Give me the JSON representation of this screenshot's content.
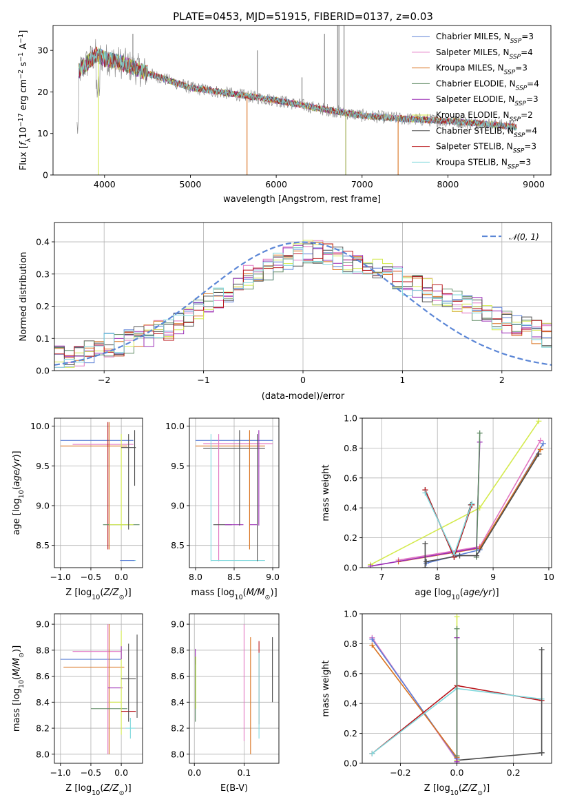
{
  "figure": {
    "title": "PLATE=0453, MJD=51915, FIBERID=0137, z=0.03"
  },
  "series": [
    {
      "name": "Chabrier MILES, N_SSP=3",
      "label_base": "Chabrier MILES, N",
      "label_sub": "SSP",
      "label_tail": "=3",
      "color": "#5b7fd6"
    },
    {
      "name": "Salpeter MILES, N_SSP=4",
      "label_base": "Salpeter MILES, N",
      "label_sub": "SSP",
      "label_tail": "=4",
      "color": "#e276c2"
    },
    {
      "name": "Kroupa MILES, N_SSP=3",
      "label_base": "Kroupa MILES, N",
      "label_sub": "SSP",
      "label_tail": "=3",
      "color": "#d9721f"
    },
    {
      "name": "Chabrier ELODIE, N_SSP=4",
      "label_base": "Chabrier ELODIE, N",
      "label_sub": "SSP",
      "label_tail": "=4",
      "color": "#5e8a63"
    },
    {
      "name": "Salpeter ELODIE, N_SSP=3",
      "label_base": "Salpeter ELODIE, N",
      "label_sub": "SSP",
      "label_tail": "=3",
      "color": "#9a2bb5"
    },
    {
      "name": "Kroupa ELODIE, N_SSP=2",
      "label_base": "Kroupa ELODIE, N",
      "label_sub": "SSP",
      "label_tail": "=2",
      "color": "#d4ea4e"
    },
    {
      "name": "Chabrier STELIB, N_SSP=4",
      "label_base": "Chabrier STELIB, N",
      "label_sub": "SSP",
      "label_tail": "=4",
      "color": "#4d4d4d"
    },
    {
      "name": "Salpeter STELIB, N_SSP=3",
      "label_base": "Salpeter STELIB, N",
      "label_sub": "SSP",
      "label_tail": "=3",
      "color": "#b8141a"
    },
    {
      "name": "Kroupa STELIB, N_SSP=3",
      "label_base": "Kroupa STELIB, N",
      "label_sub": "SSP",
      "label_tail": "=3",
      "color": "#7fd8dc"
    }
  ],
  "chart_data": [
    {
      "id": "spectrum",
      "type": "line",
      "xlabel": "wavelength [Angstrom, rest frame]",
      "ylabel": "Flux [f_λ 10^-17 erg cm^-2 s^-1 A^-1]",
      "ylabel_parts": {
        "a": "Flux [",
        "b": "f",
        "b_sub": "λ",
        "c": "10",
        "c_sup": "−17",
        "d": " erg cm",
        "d_sup": "−2",
        "e": " s",
        "e_sup": "−1",
        "f": " A",
        "f_sup": "−1",
        "g": "]"
      },
      "xlim": [
        3400,
        9200
      ],
      "ylim": [
        0,
        36
      ],
      "xticks": [
        4000,
        5000,
        6000,
        7000,
        8000,
        9000
      ],
      "yticks": [
        0,
        10,
        20,
        30
      ],
      "grid": false,
      "legend": "upper right",
      "continuum": {
        "x": [
          3700,
          3900,
          4000,
          4200,
          4500,
          5000,
          5500,
          6000,
          6500,
          7000,
          7500,
          8000,
          8500,
          8800
        ],
        "y": [
          25,
          29,
          28,
          27,
          24.5,
          21,
          19.5,
          18,
          16,
          14.3,
          13.5,
          13,
          12.2,
          11.5
        ]
      },
      "gray_data_spikes": [
        {
          "x": 4330,
          "y": 34
        },
        {
          "x": 5780,
          "y": 30
        },
        {
          "x": 6300,
          "y": 23.5
        },
        {
          "x": 6563,
          "y": 34
        },
        {
          "x": 6716,
          "y": 36
        },
        {
          "x": 6731,
          "y": 36
        },
        {
          "x": 6790,
          "y": 36
        }
      ],
      "model_dropouts": [
        {
          "x": 3930,
          "color": "#d4ea4e"
        },
        {
          "x": 5660,
          "color": "#d9721f"
        },
        {
          "x": 6810,
          "color": "#9aa84a"
        },
        {
          "x": 7420,
          "color": "#d9721f"
        }
      ]
    },
    {
      "id": "residual_histogram",
      "type": "line",
      "xlabel": "(data-model)/error",
      "ylabel": "Normed distribution",
      "xlim": [
        -2.5,
        2.5
      ],
      "ylim": [
        0,
        0.46
      ],
      "xticks": [
        -2,
        -1,
        0,
        1,
        2
      ],
      "yticks": [
        0.0,
        0.1,
        0.2,
        0.3,
        0.4
      ],
      "grid": true,
      "legend": "upper right",
      "reference_label": "𝒩(0, 1)",
      "reference_color": "#5b86d6",
      "bin_width": 0.1,
      "base_profile": [
        0.04,
        0.04,
        0.05,
        0.06,
        0.07,
        0.08,
        0.08,
        0.09,
        0.1,
        0.11,
        0.12,
        0.13,
        0.15,
        0.17,
        0.19,
        0.21,
        0.23,
        0.25,
        0.27,
        0.29,
        0.3,
        0.31,
        0.33,
        0.35,
        0.36,
        0.37,
        0.37,
        0.36,
        0.35,
        0.34,
        0.33,
        0.33,
        0.32,
        0.31,
        0.29,
        0.27,
        0.26,
        0.25,
        0.24,
        0.22,
        0.21,
        0.2,
        0.19,
        0.17,
        0.16,
        0.15,
        0.14,
        0.13,
        0.12,
        0.11,
        0.1,
        0.09,
        0.09,
        0.08,
        0.07,
        0.06,
        0.06,
        0.05,
        0.05,
        0.04,
        0.04,
        0.04,
        0.03,
        0.03,
        0.03,
        0.03,
        0.03,
        0.02,
        0.02,
        0.02
      ]
    },
    {
      "id": "age_vs_Z",
      "type": "scatter",
      "xlabel": "Z [log10(Z/Z⊙)]",
      "ylabel": "age  [log10(age/yr)]",
      "xlim": [
        -1.1,
        0.35
      ],
      "ylim": [
        8.22,
        10.1
      ],
      "xticks": [
        -1.0,
        -0.5,
        0.0
      ],
      "xtick_labels": [
        "−1.0",
        "−0.5",
        "0.0"
      ],
      "yticks": [
        8.5,
        9.0,
        9.5,
        10.0
      ],
      "grid": true,
      "errorbars": [
        {
          "s": 0,
          "x": -0.4,
          "y": 9.82,
          "xerr": 0.6,
          "yerr": 0
        },
        {
          "s": 1,
          "x": -0.3,
          "y": 9.77,
          "xerr": 0.5,
          "yerr": 0
        },
        {
          "s": 2,
          "x": -0.45,
          "y": 9.75,
          "xerr": 0.55,
          "yerr": 0
        },
        {
          "s": 7,
          "x": -0.22,
          "y": 9.25,
          "xerr": 0,
          "yerr": 0.8
        },
        {
          "s": 2,
          "x": -0.2,
          "y": 9.25,
          "xerr": 0,
          "yerr": 0.8
        },
        {
          "s": 3,
          "x": 0.0,
          "y": 8.76,
          "xerr": 0.3,
          "yerr": 0
        },
        {
          "s": 5,
          "x": 0.0,
          "y": 8.76,
          "xerr": 0.2,
          "yerr": 0
        },
        {
          "s": 5,
          "x": 0.0,
          "y": 9.3,
          "xerr": 0,
          "yerr": 0.6
        },
        {
          "s": 6,
          "x": 0.12,
          "y": 9.73,
          "xerr": 0.12,
          "yerr": 0
        },
        {
          "s": 6,
          "x": 0.12,
          "y": 9.3,
          "xerr": 0,
          "yerr": 0.6
        },
        {
          "s": 8,
          "x": 0.12,
          "y": 8.31,
          "xerr": 0.12,
          "yerr": 0
        },
        {
          "s": 6,
          "x": 0.22,
          "y": 9.6,
          "xerr": 0,
          "yerr": 0.35
        },
        {
          "s": 0,
          "x": 0.1,
          "y": 8.31,
          "xerr": 0.12,
          "yerr": 0
        }
      ]
    },
    {
      "id": "age_vs_mass",
      "type": "scatter",
      "xlabel": "mass [log10(M/M⊙)]",
      "ylabel": "",
      "xlim": [
        7.92,
        9.08
      ],
      "ylim": [
        8.22,
        10.1
      ],
      "xticks": [
        8.0,
        8.5,
        9.0
      ],
      "xtick_labels": [
        "8.0",
        "8.5",
        "9.0"
      ],
      "yticks": [
        8.5,
        9.0,
        9.5,
        10.0
      ],
      "grid": true,
      "errorbars": [
        {
          "s": 0,
          "x": 8.5,
          "y": 9.82,
          "xerr": 0.5,
          "yerr": 0
        },
        {
          "s": 1,
          "x": 8.55,
          "y": 9.78,
          "xerr": 0.45,
          "yerr": 0
        },
        {
          "s": 2,
          "x": 8.45,
          "y": 9.75,
          "xerr": 0.45,
          "yerr": 0
        },
        {
          "s": 6,
          "x": 8.5,
          "y": 9.72,
          "xerr": 0.4,
          "yerr": 0
        },
        {
          "s": 8,
          "x": 8.2,
          "y": 9.1,
          "xerr": 0,
          "yerr": 0.8
        },
        {
          "s": 1,
          "x": 8.3,
          "y": 9.1,
          "xerr": 0,
          "yerr": 0.8
        },
        {
          "s": 6,
          "x": 8.35,
          "y": 8.76,
          "xerr": 0.12,
          "yerr": 0
        },
        {
          "s": 4,
          "x": 8.5,
          "y": 8.76,
          "xerr": 0.12,
          "yerr": 0
        },
        {
          "s": 4,
          "x": 8.75,
          "y": 8.76,
          "xerr": 0.05,
          "yerr": 0
        },
        {
          "s": 6,
          "x": 8.57,
          "y": 9.35,
          "xerr": 0,
          "yerr": 0.6
        },
        {
          "s": 2,
          "x": 8.7,
          "y": 9.2,
          "xerr": 0,
          "yerr": 0.75
        },
        {
          "s": 8,
          "x": 8.55,
          "y": 8.31,
          "xerr": 0.35,
          "yerr": 0
        },
        {
          "s": 6,
          "x": 8.8,
          "y": 9.1,
          "xerr": 0,
          "yerr": 0.8
        },
        {
          "s": 4,
          "x": 8.82,
          "y": 9.35,
          "xerr": 0,
          "yerr": 0.6
        }
      ]
    },
    {
      "id": "weight_vs_age",
      "type": "line",
      "xlabel": "age  [log10(age/yr)]",
      "ylabel": "mass weight",
      "xlim": [
        6.65,
        10.05
      ],
      "ylim": [
        0,
        1.0
      ],
      "xticks": [
        7,
        8,
        9,
        10
      ],
      "xtick_labels": [
        "7",
        "8",
        "9",
        "10"
      ],
      "yticks": [
        0.0,
        0.2,
        0.4,
        0.6,
        0.8,
        1.0
      ],
      "grid": true,
      "lines": [
        {
          "s": 5,
          "x": [
            6.8,
            8.76,
            9.82
          ],
          "y": [
            0.02,
            0.4,
            0.98
          ]
        },
        {
          "s": 0,
          "x": [
            7.8,
            8.76,
            9.9
          ],
          "y": [
            0.03,
            0.12,
            0.83
          ]
        },
        {
          "s": 1,
          "x": [
            7.3,
            8.76,
            9.85
          ],
          "y": [
            0.05,
            0.14,
            0.85
          ]
        },
        {
          "s": 2,
          "x": [
            7.3,
            8.76,
            9.85
          ],
          "y": [
            0.04,
            0.13,
            0.79
          ]
        },
        {
          "s": 4,
          "x": [
            6.8,
            8.7,
            8.76
          ],
          "y": [
            0.01,
            0.13,
            0.84
          ]
        },
        {
          "s": 3,
          "x": [
            8.7,
            8.76
          ],
          "y": [
            0.07,
            0.9
          ]
        },
        {
          "s": 6,
          "x": [
            7.8,
            8.4,
            8.7,
            9.82
          ],
          "y": [
            0.04,
            0.08,
            0.08,
            0.76
          ]
        },
        {
          "s": 6,
          "x": [
            7.78,
            7.78
          ],
          "y": [
            0.0,
            0.16
          ]
        },
        {
          "s": 6,
          "x": [
            7.78,
            8.3,
            8.6
          ],
          "y": [
            0.52,
            0.07,
            0.42
          ]
        },
        {
          "s": 7,
          "x": [
            7.78,
            8.3,
            8.62
          ],
          "y": [
            0.52,
            0.07,
            0.42
          ]
        },
        {
          "s": 8,
          "x": [
            7.78,
            8.3,
            8.62
          ],
          "y": [
            0.5,
            0.09,
            0.43
          ]
        }
      ]
    },
    {
      "id": "mass_vs_Z",
      "type": "scatter",
      "xlabel": "Z [log10(Z/Z⊙)]",
      "ylabel": "mass [log10(M/M⊙)]",
      "xlim": [
        -1.1,
        0.35
      ],
      "ylim": [
        7.93,
        9.08
      ],
      "xticks": [
        -1.0,
        -0.5,
        0.0
      ],
      "xtick_labels": [
        "−1.0",
        "−0.5",
        "0.0"
      ],
      "yticks": [
        8.0,
        8.2,
        8.4,
        8.6,
        8.8,
        9.0
      ],
      "grid": true,
      "errorbars": [
        {
          "s": 0,
          "x": -0.5,
          "y": 8.73,
          "xerr": 0.5,
          "yerr": 0
        },
        {
          "s": 1,
          "x": -0.4,
          "y": 8.79,
          "xerr": 0.4,
          "yerr": 0
        },
        {
          "s": 2,
          "x": -0.45,
          "y": 8.67,
          "xerr": 0.5,
          "yerr": 0
        },
        {
          "s": 1,
          "x": -0.22,
          "y": 8.5,
          "xerr": 0,
          "yerr": 0.5
        },
        {
          "s": 2,
          "x": -0.2,
          "y": 8.5,
          "xerr": 0,
          "yerr": 0.5
        },
        {
          "s": 4,
          "x": -0.1,
          "y": 8.51,
          "xerr": 0.12,
          "yerr": 0
        },
        {
          "s": 3,
          "x": -0.2,
          "y": 8.35,
          "xerr": 0.3,
          "yerr": 0
        },
        {
          "s": 5,
          "x": -0.1,
          "y": 8.4,
          "xerr": 0.1,
          "yerr": 0
        },
        {
          "s": 5,
          "x": 0.0,
          "y": 8.55,
          "xerr": 0,
          "yerr": 0.4
        },
        {
          "s": 6,
          "x": 0.12,
          "y": 8.58,
          "xerr": 0.12,
          "yerr": 0
        },
        {
          "s": 7,
          "x": 0.12,
          "y": 8.33,
          "xerr": 0.12,
          "yerr": 0
        },
        {
          "s": 6,
          "x": 0.12,
          "y": 8.55,
          "xerr": 0,
          "yerr": 0.3
        },
        {
          "s": 8,
          "x": 0.15,
          "y": 8.2,
          "xerr": 0.08,
          "yerr": 0.08
        },
        {
          "s": 6,
          "x": 0.26,
          "y": 8.6,
          "xerr": 0,
          "yerr": 0.32
        },
        {
          "s": 4,
          "x": 0.0,
          "y": 8.78,
          "xerr": 0,
          "yerr": 0.05
        }
      ]
    },
    {
      "id": "mass_vs_ebv",
      "type": "scatter",
      "xlabel": "E(B-V)",
      "ylabel": "",
      "xlim": [
        -0.01,
        0.17
      ],
      "ylim": [
        7.93,
        9.08
      ],
      "xticks": [
        0.0,
        0.1
      ],
      "xtick_labels": [
        "0.0",
        "0.1"
      ],
      "yticks": [
        8.0,
        8.2,
        8.4,
        8.6,
        8.8,
        9.0
      ],
      "grid": true,
      "errorbars": [
        {
          "s": 4,
          "x": 0.002,
          "y": 8.75,
          "xerr": 0,
          "yerr": 0.06
        },
        {
          "s": 3,
          "x": 0.002,
          "y": 8.5,
          "xerr": 0,
          "yerr": 0.25
        },
        {
          "s": 5,
          "x": 0.003,
          "y": 8.55,
          "xerr": 0,
          "yerr": 0.2
        },
        {
          "s": 1,
          "x": 0.1,
          "y": 8.55,
          "xerr": 0,
          "yerr": 0.45
        },
        {
          "s": 2,
          "x": 0.113,
          "y": 8.45,
          "xerr": 0,
          "yerr": 0.45
        },
        {
          "s": 7,
          "x": 0.13,
          "y": 8.55,
          "xerr": 0,
          "yerr": 0.32
        },
        {
          "s": 8,
          "x": 0.13,
          "y": 8.45,
          "xerr": 0,
          "yerr": 0.33
        },
        {
          "s": 6,
          "x": 0.157,
          "y": 8.65,
          "xerr": 0,
          "yerr": 0.25
        }
      ]
    },
    {
      "id": "weight_vs_Z",
      "type": "line",
      "xlabel": "Z [log10(Z/Z⊙)]",
      "ylabel": "mass weight",
      "xlim": [
        -0.335,
        0.335
      ],
      "ylim": [
        0,
        1.0
      ],
      "xticks": [
        -0.2,
        0.0,
        0.2
      ],
      "xtick_labels": [
        "−0.2",
        "0.0",
        "0.2"
      ],
      "yticks": [
        0.0,
        0.2,
        0.4,
        0.6,
        0.8,
        1.0
      ],
      "grid": true,
      "lines": [
        {
          "s": 1,
          "x": [
            -0.3,
            0.0
          ],
          "y": [
            0.84,
            0.02
          ]
        },
        {
          "s": 0,
          "x": [
            -0.3,
            0.0
          ],
          "y": [
            0.83,
            0.03
          ]
        },
        {
          "s": 2,
          "x": [
            -0.3,
            0.0
          ],
          "y": [
            0.79,
            0.04
          ]
        },
        {
          "s": 7,
          "x": [
            -0.3,
            0.0,
            0.3
          ],
          "y": [
            0.065,
            0.52,
            0.42
          ]
        },
        {
          "s": 8,
          "x": [
            -0.3,
            0.0,
            0.3
          ],
          "y": [
            0.065,
            0.5,
            0.43
          ]
        },
        {
          "s": 6,
          "x": [
            0.0,
            0.3
          ],
          "y": [
            0.02,
            0.07
          ]
        },
        {
          "s": 6,
          "x": [
            0.3,
            0.3
          ],
          "y": [
            0.07,
            0.76
          ]
        },
        {
          "s": 5,
          "x": [
            0.0,
            0.0
          ],
          "y": [
            0.02,
            0.98
          ]
        },
        {
          "s": 4,
          "x": [
            0.0,
            0.0
          ],
          "y": [
            0.01,
            0.84
          ]
        },
        {
          "s": 3,
          "x": [
            0.0,
            0.0
          ],
          "y": [
            0.05,
            0.9
          ]
        }
      ]
    }
  ]
}
